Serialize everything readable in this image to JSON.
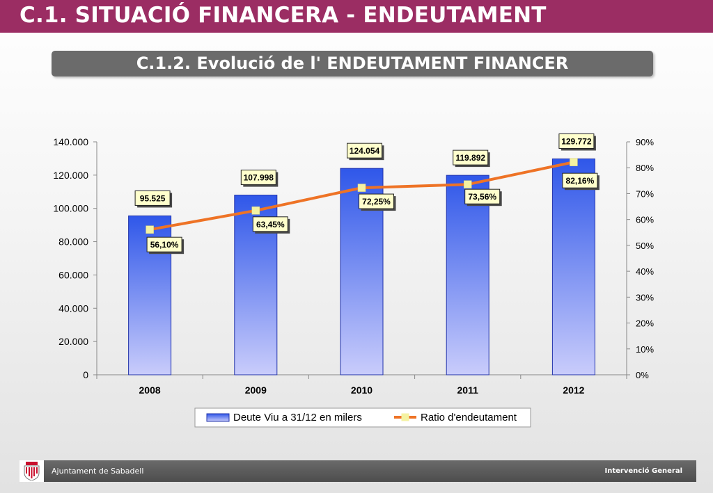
{
  "header": {
    "title": "C.1. SITUACIÓ FINANCERA - ENDEUTAMENT",
    "subtitle": "C.1.2. Evolució de l' ENDEUTAMENT FINANCER"
  },
  "colors": {
    "header_bar": "#9b2d63",
    "subtitle_bar": "#6b6b6b",
    "bar_top": "#2f57e9",
    "bar_bottom": "#c9ccfb",
    "line": "#ee7326",
    "marker": "#f4f2a2",
    "label_box": "#ffffcc"
  },
  "chart_data": {
    "type": "bar",
    "categories": [
      "2008",
      "2009",
      "2010",
      "2011",
      "2012"
    ],
    "series": [
      {
        "name": "Deute Viu a 31/12 en milers",
        "type": "bar",
        "axis": "left",
        "values": [
          95525,
          107998,
          124054,
          119892,
          129772
        ],
        "labels": [
          "95.525",
          "107.998",
          "124.054",
          "119.892",
          "129.772"
        ]
      },
      {
        "name": "Ratio d'endeutament",
        "type": "line",
        "axis": "right",
        "values": [
          56.1,
          63.45,
          72.25,
          73.56,
          82.16
        ],
        "labels": [
          "56,10%",
          "63,45%",
          "72,25%",
          "73,56%",
          "82,16%"
        ]
      }
    ],
    "y_left": {
      "range": [
        0,
        140000
      ],
      "ticks": [
        0,
        20000,
        40000,
        60000,
        80000,
        100000,
        120000,
        140000
      ],
      "tick_labels": [
        "0",
        "20.000",
        "40.000",
        "60.000",
        "80.000",
        "100.000",
        "120.000",
        "140.000"
      ]
    },
    "y_right": {
      "range": [
        0,
        90
      ],
      "ticks": [
        0,
        10,
        20,
        30,
        40,
        50,
        60,
        70,
        80,
        90
      ],
      "tick_labels": [
        "0%",
        "10%",
        "20%",
        "30%",
        "40%",
        "50%",
        "60%",
        "70%",
        "80%",
        "90%"
      ]
    },
    "grid": false,
    "legend_position": "bottom"
  },
  "footer": {
    "left_text": "Ajuntament de Sabadell",
    "right_text": "Intervenció General",
    "logo_icon": "coat-of-arms-icon"
  }
}
